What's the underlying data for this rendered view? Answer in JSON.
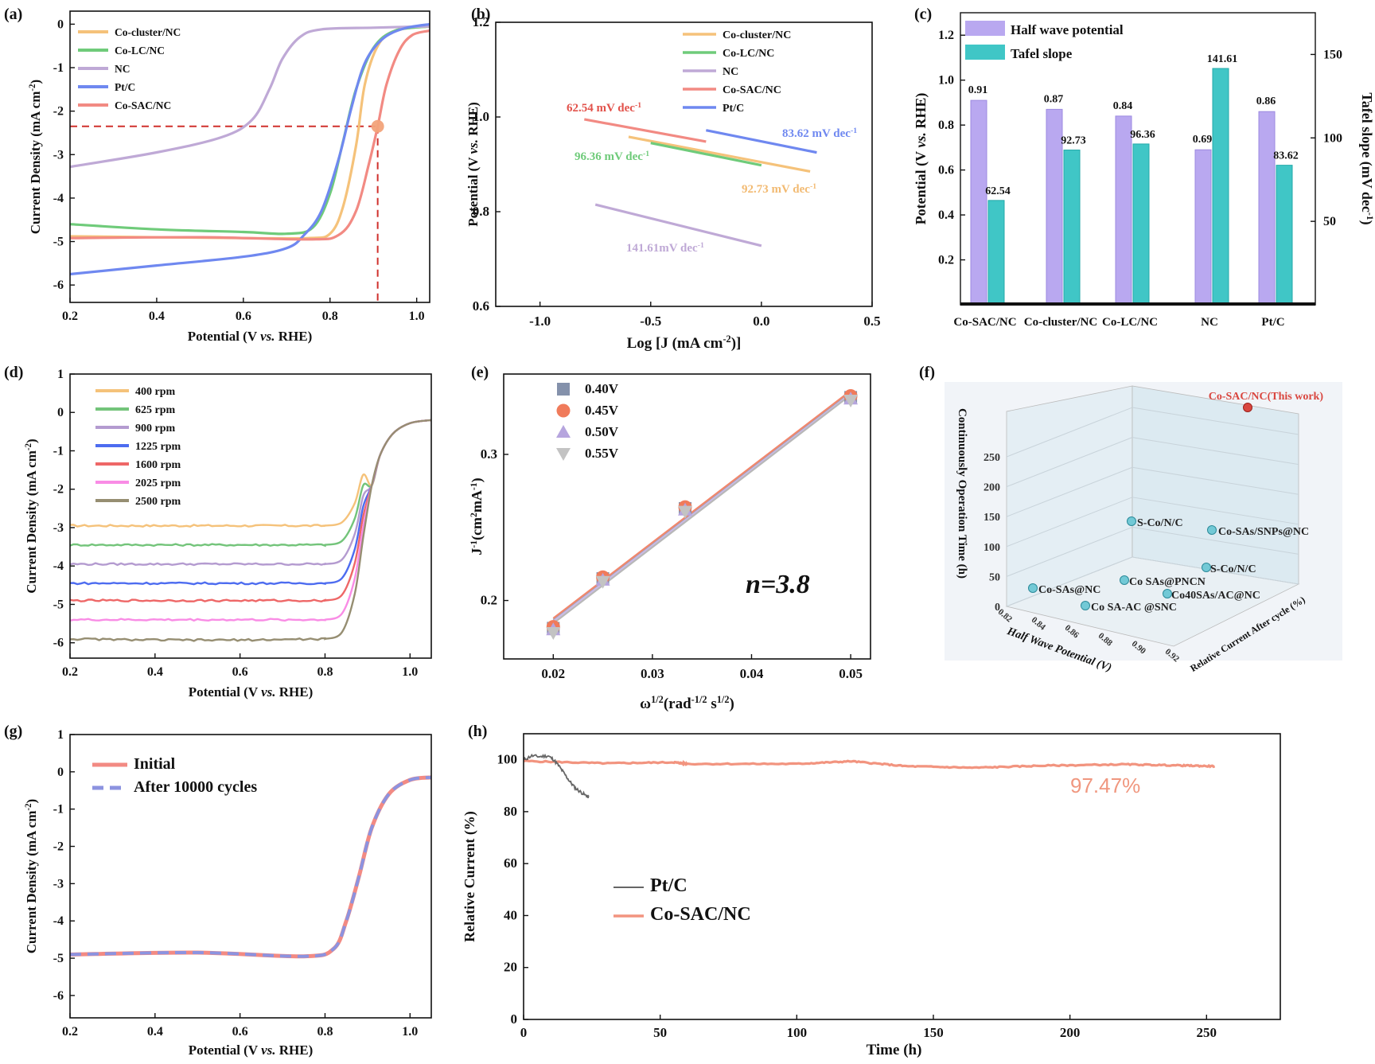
{
  "colors": {
    "co_cluster": "#F5C27A",
    "co_lc": "#6FCB7A",
    "nc": "#BFA9D6",
    "ptc": "#6F88F0",
    "co_sac": "#F28A83",
    "half_wave_bar": "#B9A8F0",
    "tafel_bar": "#40C6C6",
    "rpm400": "#F5C27A",
    "rpm625": "#73C47A",
    "rpm900": "#B49BD0",
    "rpm1225": "#4D6CF0",
    "rpm1600": "#EE6767",
    "rpm2025": "#F98CE5",
    "rpm2500": "#968E72",
    "fit_line": "#F2866C",
    "initial": "#F28A83",
    "after": "#8C93E0",
    "ptc_stab": "#666666",
    "co_sac_stab": "#F2947F",
    "sphere": "#72C9D6",
    "this_work": "#D9463F"
  },
  "chart_data": [
    {
      "panel": "(a)",
      "type": "line",
      "xlabel": "Potential (V vs. RHE)",
      "ylabel": "Current Density (mA cm-2)",
      "xlim": [
        0.2,
        1.03
      ],
      "ylim": [
        -6.4,
        0.3
      ],
      "xticks": [
        "0.2",
        "0.4",
        "0.6",
        "0.8",
        "1.0"
      ],
      "yticks": [
        "0",
        "-1",
        "-2",
        "-3",
        "-4",
        "-5",
        "-6"
      ],
      "legend": [
        "Co-cluster/NC",
        "Co-LC/NC",
        "NC",
        "Pt/C",
        "Co-SAC/NC"
      ],
      "marker": {
        "x": 0.91,
        "y": -2.35
      },
      "series": [
        {
          "name": "Co-cluster/NC",
          "points": [
            [
              0.2,
              -4.88
            ],
            [
              0.6,
              -4.92
            ],
            [
              0.75,
              -4.92
            ],
            [
              0.8,
              -4.82
            ],
            [
              0.83,
              -4.2
            ],
            [
              0.86,
              -2.8
            ],
            [
              0.88,
              -1.4
            ],
            [
              0.91,
              -0.5
            ],
            [
              0.95,
              -0.15
            ],
            [
              1.03,
              -0.05
            ]
          ]
        },
        {
          "name": "Co-LC/NC",
          "points": [
            [
              0.2,
              -4.6
            ],
            [
              0.4,
              -4.72
            ],
            [
              0.6,
              -4.78
            ],
            [
              0.7,
              -4.82
            ],
            [
              0.76,
              -4.68
            ],
            [
              0.8,
              -3.9
            ],
            [
              0.83,
              -2.7
            ],
            [
              0.86,
              -1.5
            ],
            [
              0.9,
              -0.55
            ],
            [
              0.95,
              -0.15
            ],
            [
              1.03,
              -0.05
            ]
          ]
        },
        {
          "name": "NC",
          "points": [
            [
              0.2,
              -3.28
            ],
            [
              0.4,
              -2.95
            ],
            [
              0.55,
              -2.6
            ],
            [
              0.62,
              -2.2
            ],
            [
              0.66,
              -1.5
            ],
            [
              0.69,
              -0.8
            ],
            [
              0.73,
              -0.3
            ],
            [
              0.78,
              -0.12
            ],
            [
              0.9,
              -0.08
            ],
            [
              1.03,
              -0.05
            ]
          ]
        },
        {
          "name": "Pt/C",
          "points": [
            [
              0.2,
              -5.75
            ],
            [
              0.4,
              -5.55
            ],
            [
              0.6,
              -5.35
            ],
            [
              0.7,
              -5.15
            ],
            [
              0.74,
              -4.85
            ],
            [
              0.78,
              -4.3
            ],
            [
              0.82,
              -3.1
            ],
            [
              0.85,
              -1.9
            ],
            [
              0.88,
              -0.9
            ],
            [
              0.92,
              -0.35
            ],
            [
              0.97,
              -0.1
            ],
            [
              1.03,
              0.0
            ]
          ]
        },
        {
          "name": "Co-SAC/NC",
          "points": [
            [
              0.2,
              -4.92
            ],
            [
              0.5,
              -4.9
            ],
            [
              0.75,
              -4.95
            ],
            [
              0.82,
              -4.85
            ],
            [
              0.86,
              -4.3
            ],
            [
              0.89,
              -3.2
            ],
            [
              0.91,
              -2.35
            ],
            [
              0.93,
              -1.4
            ],
            [
              0.96,
              -0.6
            ],
            [
              0.99,
              -0.25
            ],
            [
              1.03,
              -0.15
            ]
          ]
        }
      ]
    },
    {
      "panel": "(b)",
      "type": "line",
      "xlabel": "Log [J (mA cm-2)]",
      "ylabel": "Potential (V vs. RHE)",
      "xlim": [
        -1.2,
        0.5
      ],
      "ylim": [
        0.6,
        1.2
      ],
      "xticks": [
        "-1.0",
        "-0.5",
        "0.0",
        "0.5"
      ],
      "yticks": [
        "0.6",
        "0.8",
        "1.0",
        "1.2"
      ],
      "legend": [
        "Co-cluster/NC",
        "Co-LC/NC",
        "NC",
        "Co-SAC/NC",
        "Pt/C"
      ],
      "series": [
        {
          "name": "Co-cluster/NC",
          "points": [
            [
              -0.6,
              0.958
            ],
            [
              0.22,
              0.885
            ]
          ]
        },
        {
          "name": "Co-LC/NC",
          "points": [
            [
              -0.5,
              0.945
            ],
            [
              0.0,
              0.898
            ]
          ]
        },
        {
          "name": "NC",
          "points": [
            [
              -0.75,
              0.815
            ],
            [
              0.0,
              0.728
            ]
          ]
        },
        {
          "name": "Co-SAC/NC",
          "points": [
            [
              -0.8,
              0.995
            ],
            [
              -0.25,
              0.948
            ]
          ]
        },
        {
          "name": "Pt/C",
          "points": [
            [
              -0.25,
              0.972
            ],
            [
              0.25,
              0.925
            ]
          ]
        }
      ],
      "annotations": [
        "62.54 mV dec-1",
        "83.62 mV dec-1",
        "96.36 mV dec-1",
        "92.73 mV dec-1",
        "141.61mV dec-1"
      ]
    },
    {
      "panel": "(c)",
      "type": "bar",
      "categories": [
        "Co-SAC/NC",
        "Co-cluster/NC",
        "Co-LC/NC",
        "NC",
        "Pt/C"
      ],
      "ylabel_left": "Potential (V vs. RHE)",
      "ylabel_right": "Tafel slope (mV dec-1)",
      "ylim_left": [
        0.0,
        1.3
      ],
      "ylim_right": [
        0,
        175
      ],
      "yticks_left": [
        "0.2",
        "0.4",
        "0.6",
        "0.8",
        "1.0",
        "1.2"
      ],
      "yticks_right": [
        "50",
        "100",
        "150"
      ],
      "series": [
        {
          "name": "Half wave potential",
          "axis": "left",
          "values": [
            0.91,
            0.87,
            0.84,
            0.69,
            0.86
          ],
          "labels": [
            "0.91",
            "0.87",
            "0.84",
            "0.69",
            "0.86"
          ]
        },
        {
          "name": "Tafel slope",
          "axis": "right",
          "values": [
            62.54,
            92.73,
            96.36,
            141.61,
            83.62
          ],
          "labels": [
            "62.54",
            "92.73",
            "96.36",
            "141.61",
            "83.62"
          ]
        }
      ]
    },
    {
      "panel": "(d)",
      "type": "line",
      "xlabel": "Potential (V vs. RHE)",
      "ylabel": "Current Density (mA cm-2)",
      "xlim": [
        0.2,
        1.05
      ],
      "ylim": [
        -6.4,
        1.0
      ],
      "xticks": [
        "0.2",
        "0.4",
        "0.6",
        "0.8",
        "1.0"
      ],
      "yticks": [
        "1",
        "0",
        "-1",
        "-2",
        "-3",
        "-4",
        "-5",
        "-6"
      ],
      "legend": [
        "400   rpm",
        "625   rpm",
        "900   rpm",
        "1225  rpm",
        "1600  rpm",
        "2025  rpm",
        "2500  rpm"
      ],
      "series": [
        {
          "name": "400   rpm",
          "plateau": -2.95
        },
        {
          "name": "625   rpm",
          "plateau": -3.45
        },
        {
          "name": "900   rpm",
          "plateau": -3.95
        },
        {
          "name": "1225  rpm",
          "plateau": -4.45
        },
        {
          "name": "1600  rpm",
          "plateau": -4.9
        },
        {
          "name": "2025  rpm",
          "plateau": -5.4
        },
        {
          "name": "2500  rpm",
          "plateau": -5.9
        }
      ]
    },
    {
      "panel": "(e)",
      "type": "scatter",
      "xlabel": "ω1/2(rad-1/2 s1/2)",
      "ylabel": "J-1(cm2mA-1)",
      "xlim": [
        0.015,
        0.052
      ],
      "ylim": [
        0.16,
        0.355
      ],
      "xticks": [
        "0.02",
        "0.03",
        "0.04",
        "0.05"
      ],
      "yticks": [
        "0.2",
        "0.3"
      ],
      "legend": [
        "0.40V",
        "0.45V",
        "0.50V",
        "0.55V"
      ],
      "annotation": "n=3.8",
      "series": [
        {
          "name": "0.40V",
          "x": [
            0.02,
            0.025,
            0.0333,
            0.05
          ],
          "y": [
            0.181,
            0.215,
            0.263,
            0.339
          ]
        },
        {
          "name": "0.45V",
          "x": [
            0.02,
            0.025,
            0.0333,
            0.05
          ],
          "y": [
            0.182,
            0.216,
            0.264,
            0.34
          ]
        },
        {
          "name": "0.50V",
          "x": [
            0.02,
            0.025,
            0.0333,
            0.05
          ],
          "y": [
            0.18,
            0.214,
            0.262,
            0.338
          ]
        },
        {
          "name": "0.55V",
          "x": [
            0.02,
            0.025,
            0.0333,
            0.05
          ],
          "y": [
            0.178,
            0.213,
            0.261,
            0.337
          ]
        }
      ]
    },
    {
      "panel": "(f)",
      "type": "scatter",
      "dimension": "3d",
      "xlabel": "Half Wave Potential (V)",
      "ylabel": "Relative Current After cycle (%)",
      "zlabel": "Continuously Operation Time (h)",
      "xticks": [
        "0.82",
        "0.84",
        "0.86",
        "0.88",
        "0.90",
        "0.92"
      ],
      "zticks": [
        "0",
        "50",
        "100",
        "150",
        "200",
        "250"
      ],
      "points": [
        {
          "label": "Co-SAC/NC(This work)",
          "highlight": true
        },
        {
          "label": "S-Co/N/C"
        },
        {
          "label": "Co-SAs/SNPs@NC"
        },
        {
          "label": "S-Co/N/C"
        },
        {
          "label": "Co SAs@PNCN"
        },
        {
          "label": "Co40SAs/AC@NC"
        },
        {
          "label": "Co-SAs@NC"
        },
        {
          "label": "Co SA-AC @SNC"
        }
      ]
    },
    {
      "panel": "(g)",
      "type": "line",
      "xlabel": "Potential (V vs. RHE)",
      "ylabel": "Current Density (mA cm-2)",
      "xlim": [
        0.2,
        1.05
      ],
      "ylim": [
        -6.6,
        1.0
      ],
      "xticks": [
        "0.2",
        "0.4",
        "0.6",
        "0.8",
        "1.0"
      ],
      "yticks": [
        "1",
        "0",
        "-1",
        "-2",
        "-3",
        "-4",
        "-5",
        "-6"
      ],
      "legend": [
        "Initial",
        "After 10000 cycles"
      ],
      "series": [
        {
          "name": "Initial",
          "points": [
            [
              0.2,
              -4.9
            ],
            [
              0.5,
              -4.85
            ],
            [
              0.75,
              -4.95
            ],
            [
              0.82,
              -4.75
            ],
            [
              0.85,
              -4.0
            ],
            [
              0.88,
              -2.8
            ],
            [
              0.91,
              -1.5
            ],
            [
              0.95,
              -0.6
            ],
            [
              1.0,
              -0.22
            ],
            [
              1.05,
              -0.15
            ]
          ]
        },
        {
          "name": "After 10000 cycles",
          "points": [
            [
              0.2,
              -4.9
            ],
            [
              0.5,
              -4.85
            ],
            [
              0.75,
              -4.95
            ],
            [
              0.82,
              -4.75
            ],
            [
              0.85,
              -4.0
            ],
            [
              0.88,
              -2.8
            ],
            [
              0.91,
              -1.5
            ],
            [
              0.95,
              -0.6
            ],
            [
              1.0,
              -0.22
            ],
            [
              1.05,
              -0.15
            ]
          ]
        }
      ]
    },
    {
      "panel": "(h)",
      "type": "line",
      "xlabel": "Time (h)",
      "ylabel": "Relative Current (%)",
      "xlim": [
        0,
        277
      ],
      "ylim": [
        0,
        110
      ],
      "xticks": [
        "0",
        "50",
        "100",
        "150",
        "200",
        "250"
      ],
      "yticks": [
        "0",
        "20",
        "40",
        "60",
        "80",
        "100"
      ],
      "legend": [
        "Pt/C",
        "Co-SAC/NC"
      ],
      "annotation": "97.47%",
      "series": [
        {
          "name": "Pt/C",
          "points": [
            [
              0,
              100
            ],
            [
              3,
              101.5
            ],
            [
              6,
              101.2
            ],
            [
              9,
              101.5
            ],
            [
              11,
              100
            ],
            [
              13,
              97.5
            ],
            [
              15,
              94.5
            ],
            [
              17,
              91.5
            ],
            [
              19,
              89
            ],
            [
              21,
              87.5
            ],
            [
              23,
              86
            ],
            [
              24,
              85.5
            ]
          ]
        },
        {
          "name": "Co-SAC/NC",
          "points": [
            [
              0,
              99.5
            ],
            [
              30,
              98.6
            ],
            [
              55,
              99
            ],
            [
              60,
              98.4
            ],
            [
              100,
              98.4
            ],
            [
              120,
              99.4
            ],
            [
              140,
              97.5
            ],
            [
              165,
              96.9
            ],
            [
              190,
              97.7
            ],
            [
              220,
              98.2
            ],
            [
              240,
              97.8
            ],
            [
              253,
              97.47
            ]
          ]
        }
      ]
    }
  ]
}
